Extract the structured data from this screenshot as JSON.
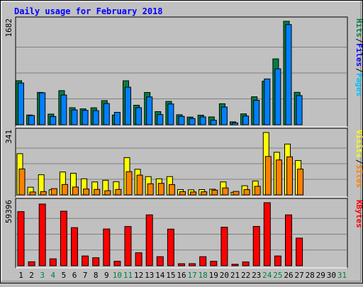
{
  "chart_data": {
    "type": "bar",
    "title": "Daily usage for February 2018",
    "categories": [
      "1",
      "2",
      "3",
      "4",
      "5",
      "6",
      "7",
      "8",
      "9",
      "10",
      "11",
      "12",
      "13",
      "14",
      "15",
      "16",
      "17",
      "18",
      "19",
      "20",
      "21",
      "22",
      "23",
      "24",
      "25",
      "26",
      "27",
      "28",
      "29",
      "30",
      "31"
    ],
    "weekend_days": [
      "3",
      "4",
      "10",
      "11",
      "17",
      "18",
      "24",
      "25",
      "31"
    ],
    "panels": [
      {
        "id": "hits-files-pages",
        "ylim": [
          0,
          1682
        ],
        "max_label": "1682",
        "series": [
          {
            "name": "Hits",
            "values": [
              715,
              158,
              525,
              173,
              554,
              276,
              258,
              275,
              392,
              158,
              714,
              317,
              524,
              213,
              379,
              163,
              124,
              155,
              127,
              341,
              47,
              176,
              454,
              709,
              1070,
              1682,
              526,
              0,
              0,
              0,
              0
            ],
            "color": "#008040"
          },
          {
            "name": "Files",
            "values": [
              678,
              150,
              519,
              134,
              483,
              241,
              234,
              229,
              344,
              202,
              611,
              278,
              452,
              166,
              337,
              136,
              101,
              128,
              73,
              288,
              30,
              142,
              398,
              744,
              909,
              1628,
              473,
              0,
              0,
              0,
              0
            ],
            "color": "#0080ff"
          },
          {
            "name": "Pages",
            "values": [
              0,
              0,
              0,
              0,
              0,
              0,
              0,
              0,
              0,
              0,
              0,
              0,
              0,
              0,
              0,
              0,
              0,
              0,
              0,
              0,
              0,
              0,
              0,
              0,
              0,
              0,
              0,
              0,
              0,
              0,
              0
            ],
            "color": "#00c0ff"
          }
        ]
      },
      {
        "id": "visits-sites",
        "ylim": [
          0,
          341
        ],
        "max_label": "341",
        "series": [
          {
            "name": "Visits",
            "values": [
              225,
              42,
              110,
              28,
              125,
              118,
              88,
              71,
              80,
              72,
              204,
              140,
              100,
              88,
              100,
              29,
              28,
              29,
              31,
              71,
              14,
              50,
              76,
              341,
              233,
              278,
              188,
              0,
              0,
              0,
              0
            ],
            "color": "#ffff00"
          },
          {
            "name": "Sites",
            "values": [
              142,
              16,
              18,
              34,
              57,
              43,
              32,
              30,
              23,
              30,
              127,
              108,
              61,
              63,
              56,
              18,
              16,
              17,
              26,
              38,
              19,
              29,
              47,
              210,
              191,
              208,
              141,
              0,
              0,
              0,
              0
            ],
            "color": "#ff8000"
          }
        ]
      },
      {
        "id": "kbytes",
        "ylim": [
          0,
          59396
        ],
        "max_label": "59396",
        "series": [
          {
            "name": "KBytes",
            "values": [
              51017,
              3717,
              58114,
              6530,
              51390,
              35925,
              9211,
              7528,
              34611,
              4176,
              36985,
              12238,
              47946,
              8538,
              34473,
              1920,
              2000,
              8538,
              4176,
              36282,
              1418,
              3578,
              37055,
              59396,
              9211,
              47946,
              26000,
              0,
              0,
              0,
              0
            ],
            "color": "#ff0000"
          }
        ]
      }
    ],
    "legend": {
      "top": [
        "Hits",
        "Files",
        "Pages"
      ],
      "middle": [
        "Visits",
        "Sites"
      ],
      "bottom": [
        "KBytes"
      ]
    },
    "colors": {
      "background": "#c0c0c0",
      "plot_background": "#c0c0c0",
      "grid": "#808080",
      "title": "#0000ff",
      "weekday": "#000000",
      "weekend": "#008040"
    }
  }
}
